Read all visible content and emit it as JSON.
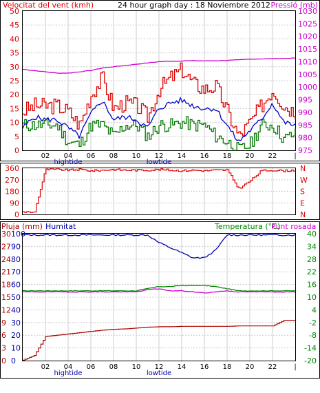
{
  "header": {
    "left_title": "Velocitat del vent (kmh)",
    "center_title": "24 hour graph day : 18 Noviembre 2012",
    "right_title": "Pressió (mb)"
  },
  "x_axis": {
    "ticks": [
      "02",
      "04",
      "06",
      "08",
      "10",
      "12",
      "14",
      "16",
      "18",
      "20",
      "22",
      "|"
    ],
    "tide_labels": [
      "hightide",
      "lowtide"
    ]
  },
  "colors": {
    "wind_gust": "#dd0000",
    "wind_avg": "#0000cc",
    "wind_low": "#007700",
    "pressure": "#cc00cc",
    "direction": "#dd0000",
    "rain": "#aa0000",
    "humidity": "#0000aa",
    "temperature": "#008800",
    "dewpoint": "#cc00cc",
    "grid": "#cccccc",
    "frame": "#000000"
  },
  "chart_data": [
    {
      "type": "line",
      "name": "wind_and_pressure",
      "ylabel": "Velocitat del vent (kmh)",
      "ylabel_right": "Pressió (mb)",
      "ylim": [
        0,
        50
      ],
      "ylim_right": [
        975,
        1030
      ],
      "yticks": [
        "0",
        "5",
        "10",
        "15",
        "20",
        "25",
        "30",
        "35",
        "40",
        "45",
        "50"
      ],
      "yticks_right": [
        "975",
        "980",
        "985",
        "990",
        "995",
        "1000",
        "1005",
        "1010",
        "1015",
        "1020",
        "1025",
        "1030"
      ],
      "x_hours": [
        0,
        1,
        2,
        3,
        4,
        5,
        6,
        7,
        8,
        9,
        10,
        11,
        12,
        13,
        14,
        15,
        16,
        17,
        18,
        19,
        20,
        21,
        22,
        23,
        24
      ],
      "series": [
        {
          "name": "gust",
          "values": [
            14,
            16,
            16,
            16,
            14,
            9,
            20,
            26,
            15,
            17,
            16,
            12,
            22,
            26,
            29,
            24,
            22,
            23,
            14,
            5,
            10,
            16,
            22,
            16,
            14
          ]
        },
        {
          "name": "average",
          "values": [
            8,
            12,
            11,
            11,
            8,
            5,
            13,
            18,
            11,
            12,
            11,
            8,
            15,
            17,
            18,
            16,
            15,
            15,
            9,
            3,
            7,
            11,
            17,
            10,
            9
          ]
        },
        {
          "name": "low",
          "values": [
            9,
            9,
            9,
            9,
            3,
            2,
            9,
            9,
            5,
            9,
            9,
            5,
            9,
            9,
            10,
            9,
            9,
            5,
            3,
            0,
            2,
            9,
            9,
            4,
            6
          ]
        },
        {
          "name": "pressure",
          "axis": "right",
          "values": [
            1007,
            1006.5,
            1006,
            1005.5,
            1005.5,
            1006,
            1006.5,
            1007.5,
            1008,
            1008.5,
            1009,
            1009.5,
            1010,
            1010.2,
            1010.3,
            1010.4,
            1010.3,
            1010.4,
            1010.5,
            1010.7,
            1011,
            1011.1,
            1011.2,
            1011.3,
            1011.4
          ]
        }
      ]
    },
    {
      "type": "line",
      "name": "wind_direction",
      "ylim": [
        0,
        360
      ],
      "yticks": [
        "0",
        "90",
        "180",
        "270",
        "360"
      ],
      "yticks_right": [
        "N",
        "E",
        "S",
        "W",
        "N"
      ],
      "x_hours": [
        0,
        1,
        2,
        3,
        4,
        5,
        6,
        7,
        8,
        9,
        10,
        11,
        12,
        13,
        14,
        15,
        16,
        17,
        18,
        19,
        20,
        21,
        22,
        23,
        24
      ],
      "series": [
        {
          "name": "direction",
          "values": [
            20,
            15,
            350,
            350,
            345,
            350,
            340,
            345,
            350,
            345,
            345,
            345,
            350,
            345,
            340,
            345,
            340,
            345,
            345,
            200,
            260,
            340,
            345,
            340,
            345
          ]
        }
      ]
    },
    {
      "type": "line",
      "name": "rain_humidity_temperature",
      "ylabel": "Pluja (mm)",
      "ylabel2": "Humitat",
      "ylabel_right": "Temperatura (°C)",
      "ylabel_right2": "Punt rosada",
      "ylim": [
        0,
        100
      ],
      "ylim_right": [
        -20,
        40
      ],
      "yticks_humidity": [
        "0",
        "10",
        "20",
        "30",
        "40",
        "50",
        "60",
        "70",
        "80",
        "90",
        "100"
      ],
      "yticks_rain": [
        "0",
        "3",
        "6",
        "9",
        "12",
        "15",
        "18",
        "21",
        "24",
        "27",
        "30"
      ],
      "yticks_right": [
        "-20",
        "-14",
        "-8",
        "-2",
        "4",
        "10",
        "16",
        "22",
        "28",
        "34",
        "40"
      ],
      "x_hours": [
        0,
        1,
        2,
        3,
        4,
        5,
        6,
        7,
        8,
        9,
        10,
        11,
        12,
        13,
        14,
        15,
        16,
        17,
        18,
        19,
        20,
        21,
        22,
        23,
        24
      ],
      "series": [
        {
          "name": "humidity",
          "values": [
            99,
            99,
            99,
            99,
            99,
            99,
            99,
            99,
            99,
            99,
            99,
            99,
            93,
            89,
            85,
            81,
            81,
            87,
            99,
            99,
            99,
            99,
            99,
            99,
            99
          ]
        },
        {
          "name": "rain",
          "values": [
            0.1,
            1.2,
            5.7,
            6.0,
            6.3,
            6.6,
            6.9,
            7.2,
            7.4,
            7.5,
            7.7,
            7.9,
            8.0,
            8.0,
            8.1,
            8.1,
            8.1,
            8.1,
            8.1,
            8.2,
            8.2,
            8.2,
            8.2,
            9.5,
            9.5
          ]
        },
        {
          "name": "temperature",
          "axis": "right",
          "values": [
            13,
            13,
            13,
            13,
            13,
            13,
            13,
            13,
            13,
            13,
            13,
            14,
            15,
            15,
            15.5,
            15.5,
            15.5,
            15,
            14,
            13,
            13,
            13,
            13,
            13,
            13
          ]
        },
        {
          "name": "dewpoint",
          "axis": "right",
          "values": [
            12.5,
            12.5,
            12.5,
            12.5,
            12.5,
            12.5,
            12.5,
            12.5,
            12.5,
            12.5,
            12.5,
            13.5,
            14,
            13,
            13,
            12.5,
            12,
            12.5,
            13,
            12.5,
            12.5,
            12.5,
            12.5,
            12.5,
            12.5
          ]
        }
      ]
    }
  ]
}
